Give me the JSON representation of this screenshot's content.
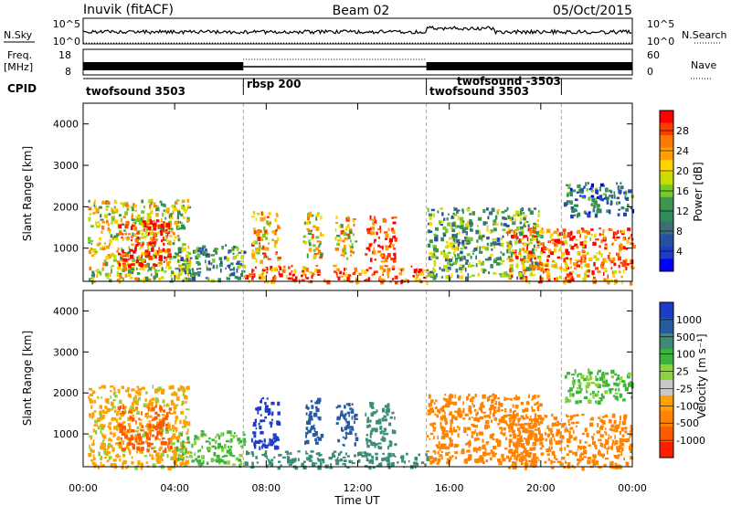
{
  "header": {
    "radar": "Inuvik (fitACF)",
    "beam": "Beam 02",
    "date": "05/Oct/2015"
  },
  "panels": {
    "nsky_label": "N.Sky",
    "nsky_ticks": [
      "10^5",
      "10^0"
    ],
    "nsky_ticks_right": [
      "10^5",
      "10^0"
    ],
    "nsearch_label": "N.Search",
    "freq_label_1": "Freq.",
    "freq_label_2": "[MHz]",
    "freq_ticks": [
      "18",
      "8"
    ],
    "nave_ticks": [
      "60",
      "0"
    ],
    "nave_label": "Nave",
    "cpid_label": "CPID",
    "cpid_modes": [
      {
        "name": "twofsound 3503",
        "start": 0.0,
        "end": 7.0
      },
      {
        "name": "rbsp 200",
        "start": 7.0,
        "end": 15.0
      },
      {
        "name": "twofsound 3503",
        "start": 15.0,
        "end": 20.9
      },
      {
        "name": "twofsound -3503",
        "start": 15.0,
        "end": 20.9
      }
    ]
  },
  "power_panel": {
    "ylabel": "Slant Range [km]",
    "colorbar_label": "Power [dB]",
    "colorbar_ticks": [
      "28",
      "24",
      "20",
      "16",
      "12",
      "8",
      "4"
    ],
    "colorbar_colors": [
      "#ff0000",
      "#ff3c00",
      "#ff7800",
      "#ffa000",
      "#ffd200",
      "#c8dc00",
      "#78c828",
      "#3c9650",
      "#2d8c5a",
      "#3c6e78",
      "#2850a0",
      "#1e3cc8",
      "#0000ff"
    ]
  },
  "velocity_panel": {
    "ylabel": "Slant Range [km]",
    "colorbar_label": "Velocity [m s⁻¹]",
    "colorbar_ticks": [
      "1000",
      "500",
      "100",
      "25",
      "-25",
      "-100",
      "-500",
      "-1000"
    ],
    "colorbar_colors": [
      "#1e3cc8",
      "#285aa0",
      "#3c8c78",
      "#3cb43c",
      "#8cd23c",
      "#c8c8c8",
      "#ffa000",
      "#ff8200",
      "#ff5a00",
      "#ff1e00"
    ]
  },
  "x_axis": {
    "ticks": [
      "00:00",
      "04:00",
      "08:00",
      "12:00",
      "16:00",
      "20:00",
      "00:00"
    ],
    "label": "Time UT"
  },
  "chart_data": {
    "type": "heatmap",
    "x_unit": "hours UT",
    "xlim": [
      0,
      24
    ],
    "ylim": [
      200,
      4500
    ],
    "y_ticks": [
      1000,
      2000,
      3000,
      4000
    ],
    "mode_boundaries_hours": [
      7.0,
      15.0,
      20.9
    ],
    "regions": [
      {
        "x": [
          0.2,
          4.6
        ],
        "y": [
          200,
          2200
        ],
        "power_db": 18,
        "velocity": -25
      },
      {
        "x": [
          1.5,
          3.8
        ],
        "y": [
          600,
          1700
        ],
        "power_db": 28,
        "velocity": -500
      },
      {
        "x": [
          4.0,
          7.0
        ],
        "y": [
          250,
          1100
        ],
        "power_db": 12,
        "velocity": 25
      },
      {
        "x": [
          7.3,
          8.5
        ],
        "y": [
          700,
          1900
        ],
        "power_db": 22,
        "velocity": 1000
      },
      {
        "x": [
          9.6,
          10.4
        ],
        "y": [
          800,
          1900
        ],
        "power_db": 20,
        "velocity": 500
      },
      {
        "x": [
          11.0,
          11.9
        ],
        "y": [
          700,
          1800
        ],
        "power_db": 20,
        "velocity": 500
      },
      {
        "x": [
          12.3,
          13.6
        ],
        "y": [
          700,
          1800
        ],
        "power_db": 28,
        "velocity": 100
      },
      {
        "x": [
          7.0,
          15.0
        ],
        "y": [
          200,
          600
        ],
        "power_db": 26,
        "velocity": 100
      },
      {
        "x": [
          15.0,
          20.0
        ],
        "y": [
          300,
          2000
        ],
        "power_db": 14,
        "velocity": -100
      },
      {
        "x": [
          18.5,
          24.0
        ],
        "y": [
          200,
          1500
        ],
        "power_db": 24,
        "velocity": -100
      },
      {
        "x": [
          21.0,
          24.0
        ],
        "y": [
          1800,
          2600
        ],
        "power_db": 10,
        "velocity": 25
      }
    ]
  }
}
